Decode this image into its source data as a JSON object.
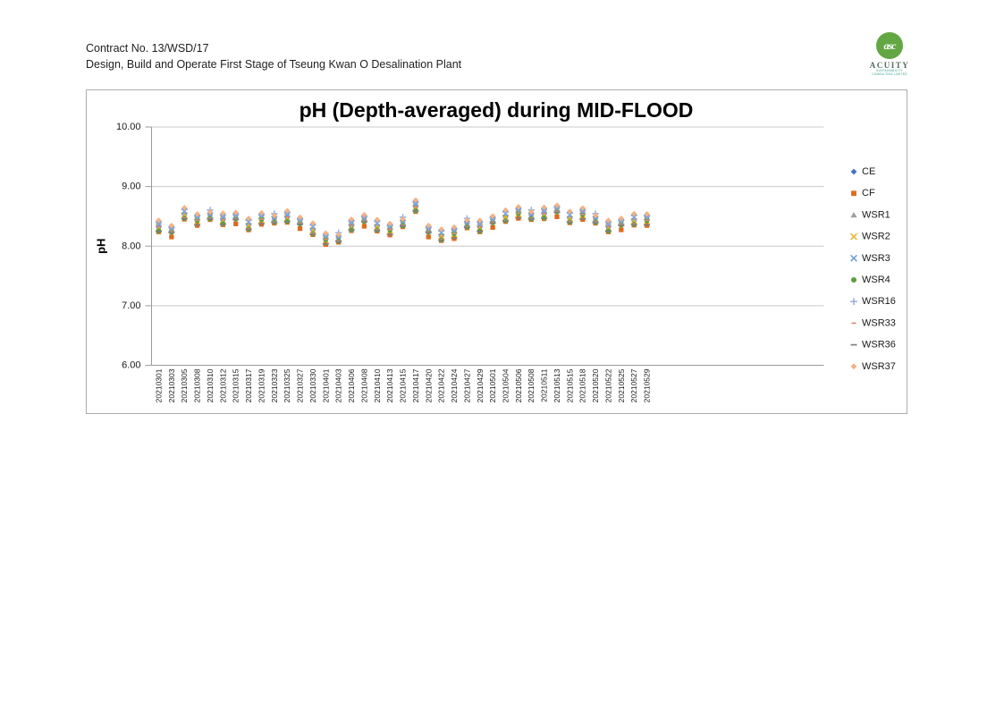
{
  "page": {
    "header_line1": "Contract No. 13/WSD/17",
    "header_line2": "Design, Build and Operate First Stage of Tseung Kwan O Desalination Plant"
  },
  "logo": {
    "monogram": "asc",
    "name": "ACUITY",
    "sub_line1": "SUSTAINABILITY",
    "sub_line2": "CONSULTING LIMITED"
  },
  "chart_data": {
    "type": "scatter",
    "title": "pH (Depth-averaged) during MID-FLOOD",
    "xlabel": "",
    "ylabel": "pH",
    "ylim": [
      6,
      10
    ],
    "y_ticks": [
      6,
      7,
      8,
      9,
      10
    ],
    "y_tick_labels": [
      "6.00",
      "7.00",
      "8.00",
      "9.00",
      "10.00"
    ],
    "grid": true,
    "legend_position": "right",
    "categories": [
      "20210301",
      "20210303",
      "20210305",
      "20210308",
      "20210310",
      "20210312",
      "20210315",
      "20210317",
      "20210319",
      "20210323",
      "20210325",
      "20210327",
      "20210330",
      "20210401",
      "20210403",
      "20210406",
      "20210408",
      "20210410",
      "20210413",
      "20210415",
      "20210417",
      "20210420",
      "20210422",
      "20210424",
      "20210427",
      "20210429",
      "20210501",
      "20210504",
      "20210506",
      "20210508",
      "20210511",
      "20210513",
      "20210515",
      "20210518",
      "20210520",
      "20210522",
      "20210525",
      "20210527",
      "20210529"
    ],
    "series": [
      {
        "name": "CE",
        "marker": "diamond",
        "color": "#4472C4",
        "values": [
          8.34,
          8.28,
          8.54,
          8.46,
          8.52,
          8.46,
          8.5,
          8.36,
          8.48,
          8.46,
          8.5,
          8.42,
          8.28,
          8.14,
          8.14,
          8.36,
          8.46,
          8.34,
          8.3,
          8.4,
          8.68,
          8.28,
          8.18,
          8.24,
          8.38,
          8.34,
          8.44,
          8.5,
          8.58,
          8.52,
          8.56,
          8.62,
          8.48,
          8.56,
          8.46,
          8.34,
          8.4,
          8.44,
          8.46
        ]
      },
      {
        "name": "CF",
        "marker": "square",
        "color": "#DD6B1E",
        "values": [
          8.24,
          8.18,
          8.44,
          8.36,
          8.42,
          8.36,
          8.4,
          8.26,
          8.38,
          8.36,
          8.4,
          8.32,
          8.18,
          8.04,
          8.04,
          8.26,
          8.36,
          8.24,
          8.2,
          8.3,
          8.58,
          8.18,
          8.08,
          8.14,
          8.28,
          8.24,
          8.34,
          8.4,
          8.48,
          8.42,
          8.46,
          8.52,
          8.38,
          8.46,
          8.36,
          8.24,
          8.3,
          8.34,
          8.36
        ]
      },
      {
        "name": "WSR1",
        "marker": "triangle",
        "color": "#9E9E9E",
        "values": [
          8.38,
          8.32,
          8.58,
          8.5,
          8.56,
          8.5,
          8.54,
          8.4,
          8.52,
          8.5,
          8.54,
          8.46,
          8.32,
          8.18,
          8.18,
          8.4,
          8.5,
          8.38,
          8.34,
          8.44,
          8.72,
          8.32,
          8.22,
          8.28,
          8.42,
          8.38,
          8.48,
          8.54,
          8.62,
          8.56,
          8.6,
          8.66,
          8.52,
          8.6,
          8.5,
          8.38,
          8.44,
          8.48,
          8.5
        ]
      },
      {
        "name": "WSR2",
        "marker": "x",
        "color": "#E6B32E",
        "values": [
          8.32,
          8.26,
          8.52,
          8.44,
          8.5,
          8.44,
          8.48,
          8.34,
          8.46,
          8.44,
          8.48,
          8.4,
          8.26,
          8.12,
          8.12,
          8.34,
          8.44,
          8.32,
          8.28,
          8.38,
          8.66,
          8.26,
          8.16,
          8.22,
          8.36,
          8.32,
          8.42,
          8.48,
          8.56,
          8.5,
          8.54,
          8.6,
          8.46,
          8.54,
          8.44,
          8.32,
          8.38,
          8.42,
          8.44
        ]
      },
      {
        "name": "WSR3",
        "marker": "x",
        "color": "#6E9BD1",
        "values": [
          8.36,
          8.3,
          8.56,
          8.48,
          8.54,
          8.48,
          8.52,
          8.38,
          8.5,
          8.48,
          8.52,
          8.44,
          8.3,
          8.16,
          8.16,
          8.38,
          8.48,
          8.36,
          8.32,
          8.42,
          8.7,
          8.3,
          8.2,
          8.26,
          8.4,
          8.36,
          8.46,
          8.52,
          8.6,
          8.54,
          8.58,
          8.64,
          8.5,
          8.58,
          8.48,
          8.36,
          8.42,
          8.46,
          8.48
        ]
      },
      {
        "name": "WSR4",
        "marker": "circle",
        "color": "#5E9E3E",
        "values": [
          8.28,
          8.22,
          8.48,
          8.4,
          8.46,
          8.4,
          8.44,
          8.3,
          8.42,
          8.4,
          8.44,
          8.36,
          8.22,
          8.08,
          8.08,
          8.3,
          8.4,
          8.28,
          8.24,
          8.34,
          8.62,
          8.22,
          8.12,
          8.18,
          8.32,
          8.28,
          8.38,
          8.44,
          8.52,
          8.46,
          8.5,
          8.56,
          8.42,
          8.5,
          8.4,
          8.28,
          8.34,
          8.38,
          8.4
        ]
      },
      {
        "name": "WSR16",
        "marker": "plus",
        "color": "#8FAADC",
        "values": [
          8.4,
          8.34,
          8.6,
          8.52,
          8.58,
          8.52,
          8.56,
          8.42,
          8.54,
          8.52,
          8.56,
          8.48,
          8.34,
          8.2,
          8.2,
          8.42,
          8.52,
          8.4,
          8.36,
          8.46,
          8.74,
          8.34,
          8.24,
          8.3,
          8.44,
          8.4,
          8.5,
          8.56,
          8.64,
          8.58,
          8.62,
          8.68,
          8.54,
          8.62,
          8.52,
          8.4,
          8.46,
          8.5,
          8.52
        ]
      },
      {
        "name": "WSR33",
        "marker": "dash-short",
        "color": "#D98E73",
        "values": [
          8.3,
          8.24,
          8.5,
          8.42,
          8.48,
          8.42,
          8.46,
          8.32,
          8.44,
          8.42,
          8.46,
          8.38,
          8.24,
          8.1,
          8.1,
          8.32,
          8.42,
          8.3,
          8.26,
          8.36,
          8.64,
          8.24,
          8.14,
          8.2,
          8.34,
          8.3,
          8.4,
          8.46,
          8.54,
          8.48,
          8.52,
          8.58,
          8.44,
          8.52,
          8.42,
          8.3,
          8.36,
          8.4,
          8.42
        ]
      },
      {
        "name": "WSR36",
        "marker": "dash",
        "color": "#7F7F7F",
        "values": [
          8.26,
          8.2,
          8.46,
          8.38,
          8.44,
          8.38,
          8.42,
          8.28,
          8.4,
          8.38,
          8.42,
          8.34,
          8.2,
          8.06,
          8.06,
          8.28,
          8.38,
          8.26,
          8.22,
          8.32,
          8.6,
          8.2,
          8.1,
          8.16,
          8.3,
          8.26,
          8.36,
          8.42,
          8.5,
          8.44,
          8.48,
          8.54,
          8.4,
          8.48,
          8.38,
          8.26,
          8.32,
          8.36,
          8.38
        ]
      },
      {
        "name": "WSR37",
        "marker": "diamond",
        "color": "#F4B183",
        "values": [
          8.42,
          8.36,
          8.62,
          8.54,
          8.6,
          8.54,
          8.58,
          8.44,
          8.56,
          8.54,
          8.58,
          8.5,
          8.36,
          8.22,
          8.22,
          8.44,
          8.54,
          8.42,
          8.38,
          8.48,
          8.76,
          8.36,
          8.26,
          8.32,
          8.46,
          8.42,
          8.52,
          8.58,
          8.66,
          8.6,
          8.64,
          8.7,
          8.56,
          8.64,
          8.54,
          8.42,
          8.48,
          8.52,
          8.54
        ]
      }
    ]
  }
}
